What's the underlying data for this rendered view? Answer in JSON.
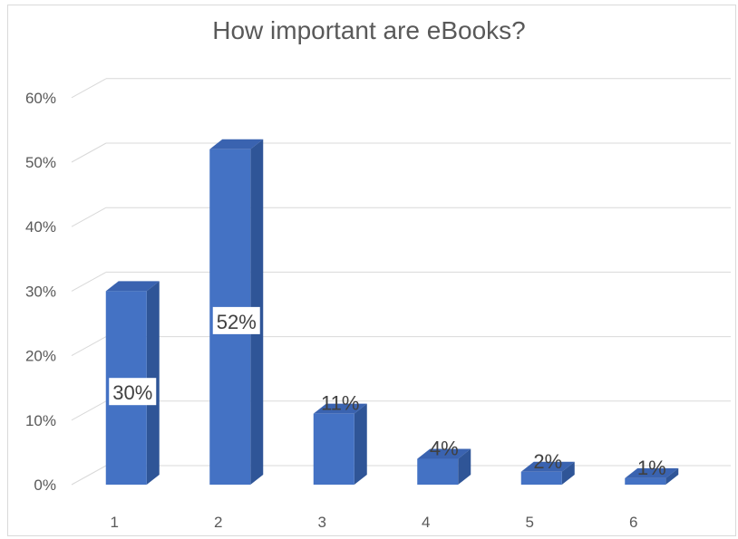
{
  "chart_data": {
    "type": "bar",
    "title": "How important are eBooks?",
    "xlabel": "",
    "ylabel": "",
    "categories": [
      "1",
      "2",
      "3",
      "4",
      "5",
      "6"
    ],
    "values": [
      0.3,
      0.52,
      0.11,
      0.04,
      0.02,
      0.01
    ],
    "data_labels": [
      "30%",
      "52%",
      "11%",
      "4%",
      "2%",
      "1%"
    ],
    "ylim": [
      0,
      0.6
    ],
    "yticks": [
      0,
      0.1,
      0.2,
      0.3,
      0.4,
      0.5,
      0.6
    ],
    "ytick_labels": [
      "0%",
      "10%",
      "20%",
      "30%",
      "40%",
      "50%",
      "60%"
    ],
    "grid": true,
    "legend": "none",
    "style": "3d-column",
    "colors": {
      "bar_front": "#4472c4",
      "bar_side": "#2f5597",
      "bar_top": "#3a63b0",
      "gridline": "#d9d9d9",
      "label_background": "#ffffff"
    }
  }
}
